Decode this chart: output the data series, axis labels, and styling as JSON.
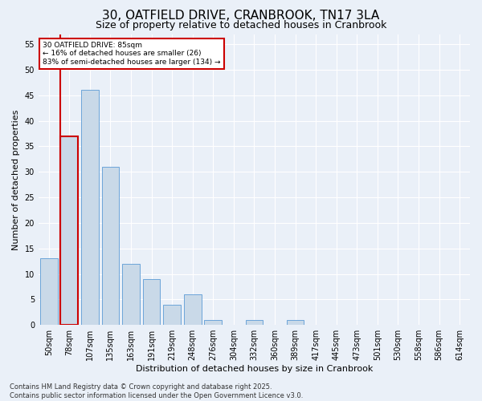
{
  "title": "30, OATFIELD DRIVE, CRANBROOK, TN17 3LA",
  "subtitle": "Size of property relative to detached houses in Cranbrook",
  "xlabel": "Distribution of detached houses by size in Cranbrook",
  "ylabel": "Number of detached properties",
  "footer_line1": "Contains HM Land Registry data © Crown copyright and database right 2025.",
  "footer_line2": "Contains public sector information licensed under the Open Government Licence v3.0.",
  "categories": [
    "50sqm",
    "78sqm",
    "107sqm",
    "135sqm",
    "163sqm",
    "191sqm",
    "219sqm",
    "248sqm",
    "276sqm",
    "304sqm",
    "332sqm",
    "360sqm",
    "389sqm",
    "417sqm",
    "445sqm",
    "473sqm",
    "501sqm",
    "530sqm",
    "558sqm",
    "586sqm",
    "614sqm"
  ],
  "values": [
    13,
    37,
    46,
    31,
    12,
    9,
    4,
    6,
    1,
    0,
    1,
    0,
    1,
    0,
    0,
    0,
    0,
    0,
    0,
    0,
    0
  ],
  "bar_color": "#c9d9e8",
  "bar_edge_color": "#5b9bd5",
  "highlight_bar_index": 1,
  "highlight_edge_color": "#cc0000",
  "annotation_text": "30 OATFIELD DRIVE: 85sqm\n← 16% of detached houses are smaller (26)\n83% of semi-detached houses are larger (134) →",
  "annotation_box_color": "white",
  "annotation_box_edge_color": "#cc0000",
  "ylim": [
    0,
    57
  ],
  "yticks": [
    0,
    5,
    10,
    15,
    20,
    25,
    30,
    35,
    40,
    45,
    50,
    55
  ],
  "background_color": "#eaf0f8",
  "plot_bg_color": "#eaf0f8",
  "grid_color": "white",
  "title_fontsize": 11,
  "subtitle_fontsize": 9,
  "tick_fontsize": 7,
  "label_fontsize": 8,
  "footer_fontsize": 6
}
